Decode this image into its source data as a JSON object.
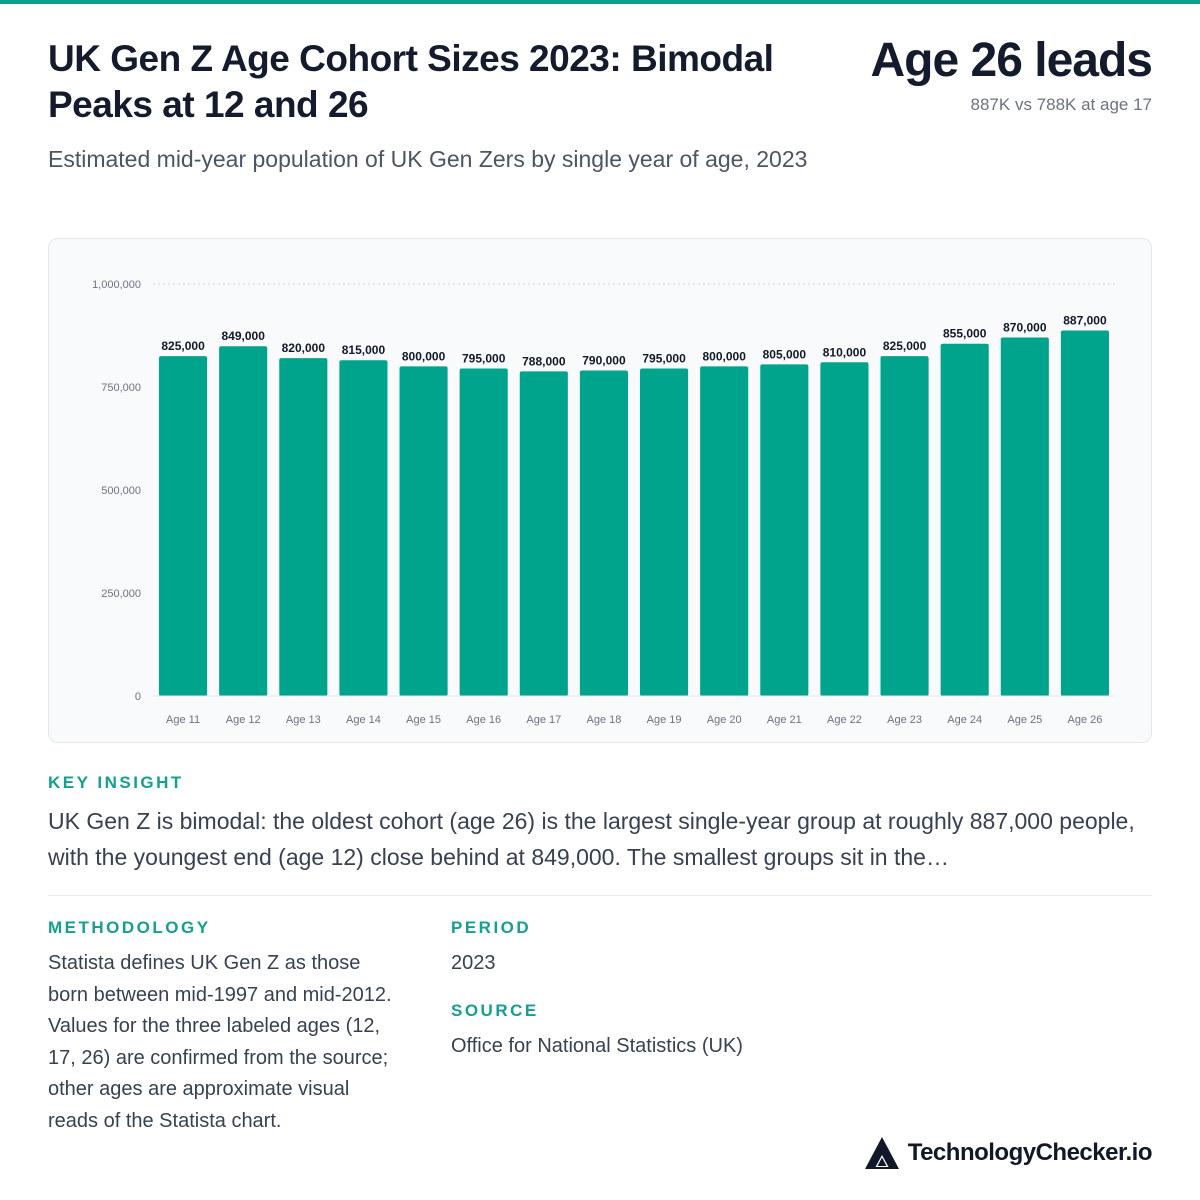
{
  "header": {
    "title": "UK Gen Z Age Cohort Sizes 2023: Bimodal Peaks at 12 and 26",
    "subtitle": "Estimated mid-year population of UK Gen Zers by single year of age, 2023",
    "headline": "Age 26 leads",
    "headline_sub": "887K vs 788K at age 17"
  },
  "colors": {
    "accent": "#0f9e8c",
    "bar": "#00a38b",
    "heading": "#131b2c",
    "body_text": "#374151"
  },
  "chart_data": {
    "type": "bar",
    "categories": [
      "Age 11",
      "Age 12",
      "Age 13",
      "Age 14",
      "Age 15",
      "Age 16",
      "Age 17",
      "Age 18",
      "Age 19",
      "Age 20",
      "Age 21",
      "Age 22",
      "Age 23",
      "Age 24",
      "Age 25",
      "Age 26"
    ],
    "values": [
      825000,
      849000,
      820000,
      815000,
      800000,
      795000,
      788000,
      790000,
      795000,
      800000,
      805000,
      810000,
      825000,
      855000,
      870000,
      887000
    ],
    "value_labels": [
      "825,000",
      "849,000",
      "820,000",
      "815,000",
      "800,000",
      "795,000",
      "788,000",
      "790,000",
      "795,000",
      "800,000",
      "805,000",
      "810,000",
      "825,000",
      "855,000",
      "870,000",
      "887,000"
    ],
    "yticks": [
      0,
      250000,
      500000,
      750000,
      1000000
    ],
    "ytick_labels": [
      "0",
      "250,000",
      "500,000",
      "750,000",
      "1,000,000"
    ],
    "ylim": [
      0,
      1000000
    ],
    "grid": "dotted line at top only",
    "legend": "none"
  },
  "insight": {
    "label": "KEY INSIGHT",
    "text": "UK Gen Z is bimodal: the oldest cohort (age 26) is the largest single-year group at roughly 887,000 people, with the youngest end (age 12) close behind at 849,000. The smallest groups sit in the…"
  },
  "methodology": {
    "label": "METHODOLOGY",
    "text": "Statista defines UK Gen Z as those born between mid-1997 and mid-2012. Values for the three labeled ages (12, 17, 26) are confirmed from the source; other ages are approximate visual reads of the Statista chart."
  },
  "period": {
    "label": "PERIOD",
    "value": "2023"
  },
  "source": {
    "label": "SOURCE",
    "value": "Office for National Statistics (UK)"
  },
  "brand": {
    "name": "TechnologyChecker.io",
    "logo_icon": "triangle-logo-icon"
  }
}
